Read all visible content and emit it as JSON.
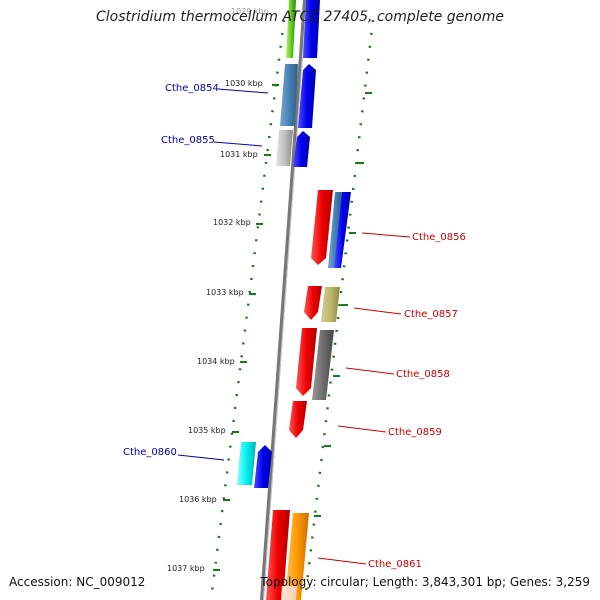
{
  "title": "Clostridium thermocellum ATCC 27405, complete genome",
  "accession_label": "Accession: NC_009012",
  "stats_label": "Topology: circular; Length: 3,843,301 bp; Genes: 3,259",
  "top_partial_tick": "1029 kbp",
  "ticks": [
    {
      "label": "1030 kbp"
    },
    {
      "label": "1031 kbp"
    },
    {
      "label": "1032 kbp"
    },
    {
      "label": "1033 kbp"
    },
    {
      "label": "1034 kbp"
    },
    {
      "label": "1035 kbp"
    },
    {
      "label": "1036 kbp"
    },
    {
      "label": "1037 kbp"
    }
  ],
  "genes": [
    {
      "label": "Cthe_0854",
      "strand": "reverse",
      "label_color": "#0000aa"
    },
    {
      "label": "Cthe_0855",
      "strand": "reverse",
      "label_color": "#0000aa"
    },
    {
      "label": "Cthe_0856",
      "strand": "forward",
      "label_color": "#cc0000"
    },
    {
      "label": "Cthe_0857",
      "strand": "forward",
      "label_color": "#cc0000"
    },
    {
      "label": "Cthe_0858",
      "strand": "forward",
      "label_color": "#cc0000"
    },
    {
      "label": "Cthe_0859",
      "strand": "forward",
      "label_color": "#cc0000"
    },
    {
      "label": "Cthe_0860",
      "strand": "reverse",
      "label_color": "#0000aa"
    },
    {
      "label": "Cthe_0861",
      "strand": "forward",
      "label_color": "#cc0000"
    }
  ],
  "colors": {
    "backbone": "#777777",
    "dotted_track": "#1a7a1a",
    "forward_label": "#cc0000",
    "reverse_label": "#0000aa",
    "cds_forward": "#ee0000",
    "cds_reverse": "#0000ee"
  }
}
